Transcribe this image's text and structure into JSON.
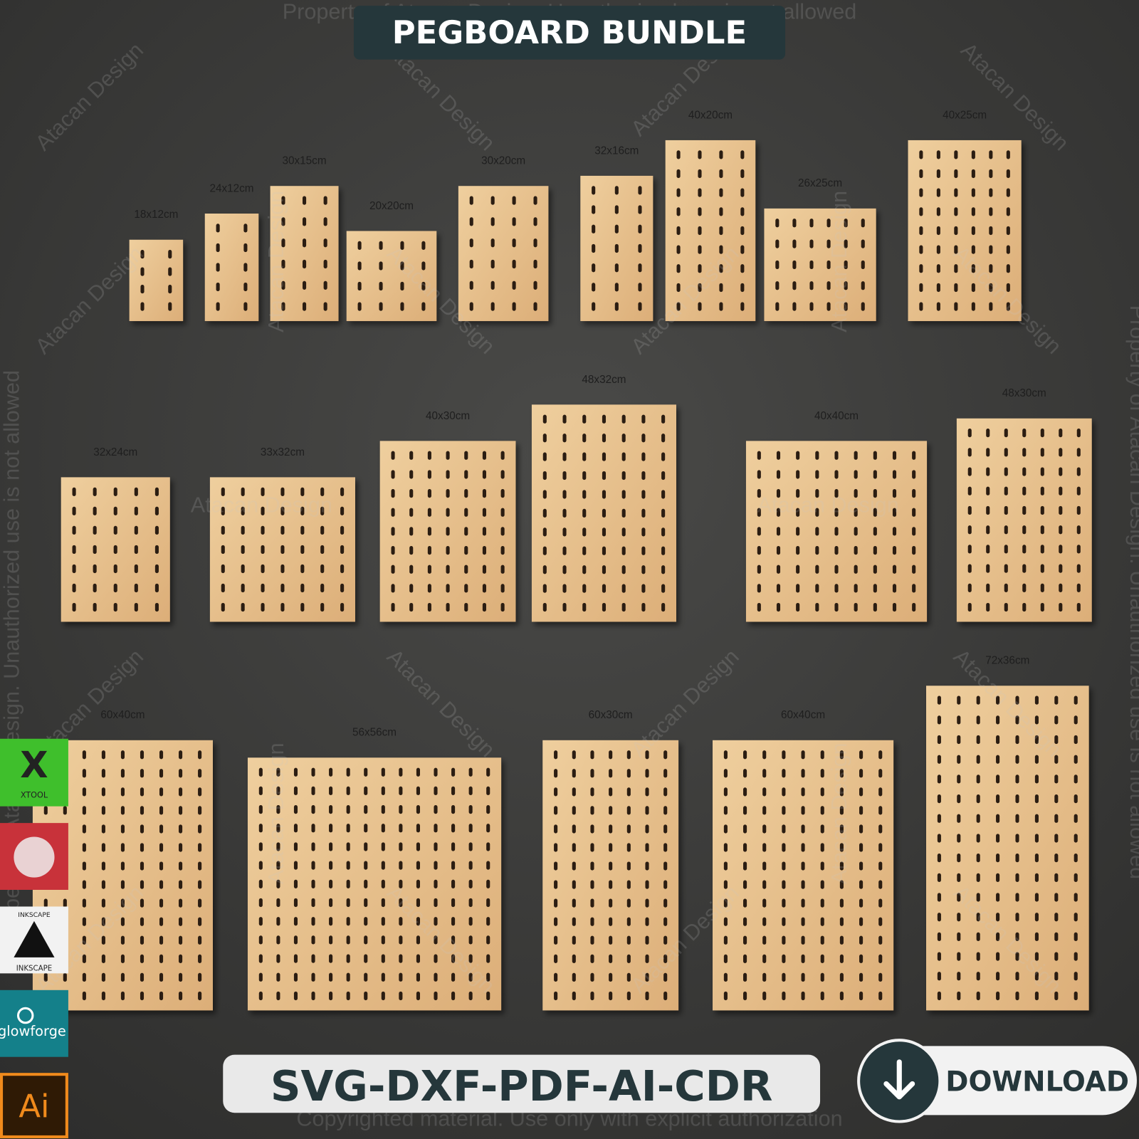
{
  "header": {
    "title": "PEGBOARD BUNDLE"
  },
  "boards": [
    "18x12cm",
    "24x12cm",
    "30x15cm",
    "20x20cm",
    "30x20cm",
    "32x16cm",
    "40x20cm",
    "26x25cm",
    "40x25cm",
    "32x24cm",
    "33x32cm",
    "40x30cm",
    "48x32cm",
    "40x40cm",
    "48x30cm",
    "60x40cm",
    "56x56cm",
    "60x30cm",
    "60x40cm",
    "72x36cm"
  ],
  "watermark": {
    "top": "Property of Atacan Design. Unauthorized use is not allowed",
    "bottom": "Copyrighted material. Use only with explicit authorization",
    "brand": "Atacan Design"
  },
  "formats": "SVG-DXF-PDF-AI-CDR",
  "download": "DOWNLOAD",
  "software": [
    "XTOOL",
    "INKSCAPE",
    "glowforge",
    "Ai"
  ]
}
